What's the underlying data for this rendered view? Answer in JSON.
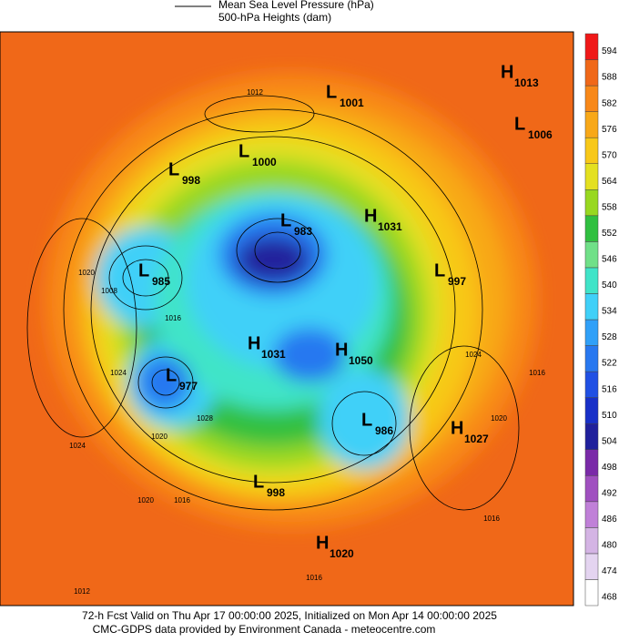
{
  "legend": {
    "pressure": "Mean Sea Level Pressure (hPa)",
    "heights": "500-hPa Heights (dam)"
  },
  "centers": [
    {
      "letter": "H",
      "value": 1013
    },
    {
      "letter": "L",
      "value": 1001
    },
    {
      "letter": "L",
      "value": 1006
    },
    {
      "letter": "L",
      "value": 1000
    },
    {
      "letter": "L",
      "value": 998
    },
    {
      "letter": "H",
      "value": 1031
    },
    {
      "letter": "L",
      "value": 983
    },
    {
      "letter": "L",
      "value": 985
    },
    {
      "letter": "L",
      "value": 997
    },
    {
      "letter": "H",
      "value": 1031
    },
    {
      "letter": "H",
      "value": 1050
    },
    {
      "letter": "L",
      "value": 977
    },
    {
      "letter": "L",
      "value": 986
    },
    {
      "letter": "H",
      "value": 1027
    },
    {
      "letter": "L",
      "value": 998
    },
    {
      "letter": "H",
      "value": 1020
    }
  ],
  "isobar_labels": [
    1012,
    1020,
    1016,
    1008,
    1024,
    1028,
    1020,
    1024,
    1020,
    1016,
    1012,
    1016,
    1016,
    1020,
    1024,
    1016
  ],
  "colorbar": {
    "levels": [
      468,
      474,
      480,
      486,
      492,
      498,
      504,
      510,
      516,
      522,
      528,
      534,
      540,
      546,
      552,
      558,
      564,
      570,
      576,
      582,
      588,
      594
    ],
    "colors": [
      "#ffffff",
      "#e4d4f0",
      "#d4b4e4",
      "#c080d8",
      "#a050c0",
      "#7a2aa8",
      "#20209c",
      "#1830c8",
      "#2050e4",
      "#2878f0",
      "#30a0f8",
      "#40d0f8",
      "#40e4c8",
      "#70e088",
      "#30c040",
      "#98d820",
      "#e4e020",
      "#f8c818",
      "#f8a818",
      "#f88818",
      "#f06818",
      "#f01818"
    ]
  },
  "footer": {
    "valid": "72-h Fcst Valid on Thu Apr 17 00:00:00 2025, Initialized on Mon Apr 14 00:00:00 2025",
    "credit": "CMC-GDPS data provided by Environment Canada - meteocentre.com"
  }
}
